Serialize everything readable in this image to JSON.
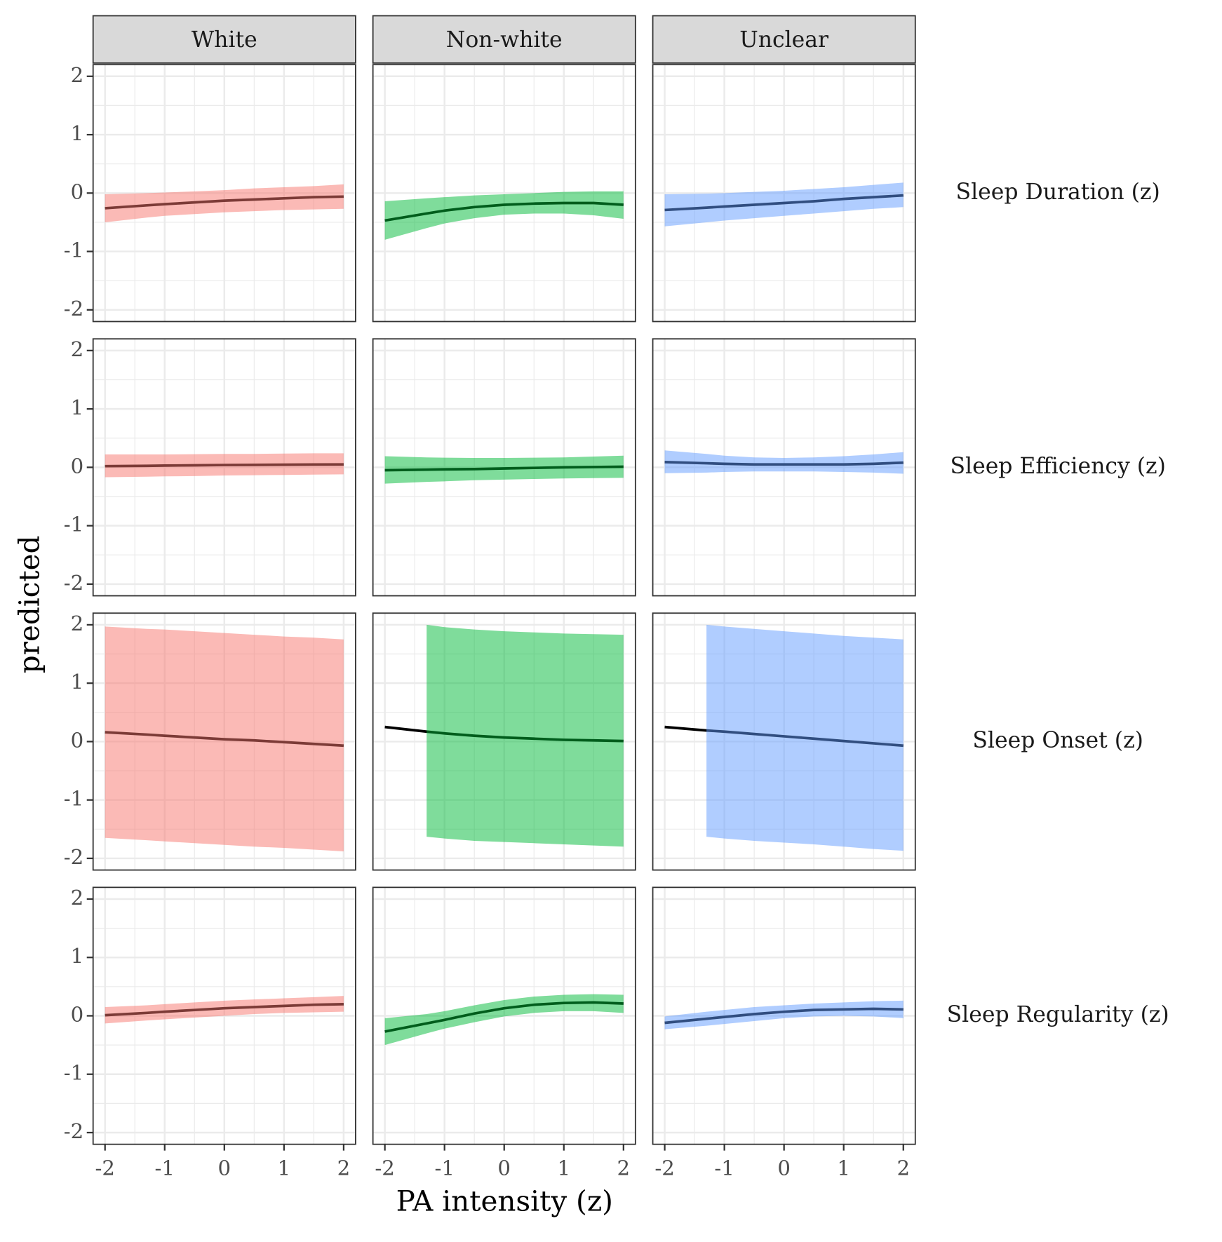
{
  "chart_data": {
    "type": "line",
    "x_label": "PA intensity (z)",
    "y_label": "predicted",
    "xlim": [
      -2.2,
      2.2
    ],
    "xticks": [
      -2,
      -1,
      0,
      1,
      2
    ],
    "ylim": [
      -2.2,
      2.2
    ],
    "yticks": [
      -2,
      -1,
      0,
      1,
      2
    ],
    "grid": true,
    "line_color": "#000000",
    "x": [
      -2,
      -1.3,
      -1,
      -0.5,
      0,
      0.5,
      1,
      1.5,
      2
    ],
    "columns": [
      {
        "name": "White",
        "color": "#f8766d"
      },
      {
        "name": "Non-white",
        "color": "#00ba38"
      },
      {
        "name": "Unclear",
        "color": "#619cff"
      }
    ],
    "rows": [
      "Sleep Duration (z)",
      "Sleep Efficiency (z)",
      "Sleep Onset (z)",
      "Sleep Regularity (z)"
    ],
    "panels": [
      [
        {
          "line": [
            -0.26,
            -0.21,
            -0.19,
            -0.16,
            -0.13,
            -0.11,
            -0.09,
            -0.07,
            -0.06
          ],
          "lower": [
            -0.5,
            -0.42,
            -0.39,
            -0.36,
            -0.33,
            -0.31,
            -0.29,
            -0.28,
            -0.27
          ],
          "upper": [
            -0.02,
            0.0,
            0.01,
            0.03,
            0.05,
            0.08,
            0.1,
            0.12,
            0.15
          ]
        },
        {
          "line": [
            -0.47,
            -0.35,
            -0.3,
            -0.24,
            -0.2,
            -0.18,
            -0.17,
            -0.17,
            -0.2
          ],
          "lower": [
            -0.8,
            -0.6,
            -0.52,
            -0.43,
            -0.37,
            -0.35,
            -0.35,
            -0.38,
            -0.44
          ],
          "upper": [
            -0.14,
            -0.09,
            -0.07,
            -0.04,
            -0.02,
            0.0,
            0.02,
            0.03,
            0.03
          ]
        },
        {
          "line": [
            -0.29,
            -0.25,
            -0.23,
            -0.2,
            -0.17,
            -0.14,
            -0.1,
            -0.07,
            -0.04
          ],
          "lower": [
            -0.57,
            -0.5,
            -0.47,
            -0.43,
            -0.39,
            -0.35,
            -0.31,
            -0.27,
            -0.24
          ],
          "upper": [
            -0.02,
            -0.01,
            0.0,
            0.02,
            0.04,
            0.07,
            0.1,
            0.14,
            0.18
          ]
        }
      ],
      [
        {
          "line": [
            0.02,
            0.025,
            0.03,
            0.035,
            0.04,
            0.042,
            0.045,
            0.048,
            0.05
          ],
          "lower": [
            -0.17,
            -0.16,
            -0.155,
            -0.15,
            -0.14,
            -0.135,
            -0.13,
            -0.125,
            -0.12
          ],
          "upper": [
            0.22,
            0.22,
            0.22,
            0.225,
            0.23,
            0.23,
            0.235,
            0.24,
            0.24
          ]
        },
        {
          "line": [
            -0.05,
            -0.04,
            -0.035,
            -0.03,
            -0.02,
            -0.01,
            0.0,
            0.005,
            0.01
          ],
          "lower": [
            -0.28,
            -0.25,
            -0.24,
            -0.22,
            -0.21,
            -0.2,
            -0.19,
            -0.185,
            -0.18
          ],
          "upper": [
            0.19,
            0.17,
            0.165,
            0.16,
            0.16,
            0.165,
            0.17,
            0.185,
            0.2
          ]
        },
        {
          "line": [
            0.09,
            0.07,
            0.06,
            0.05,
            0.05,
            0.05,
            0.05,
            0.06,
            0.08
          ],
          "lower": [
            -0.1,
            -0.09,
            -0.08,
            -0.07,
            -0.07,
            -0.07,
            -0.08,
            -0.09,
            -0.11
          ],
          "upper": [
            0.29,
            0.23,
            0.2,
            0.17,
            0.16,
            0.17,
            0.19,
            0.22,
            0.26
          ]
        }
      ],
      [
        {
          "line": [
            0.16,
            0.12,
            0.1,
            0.07,
            0.04,
            0.02,
            -0.01,
            -0.04,
            -0.07
          ],
          "lower": [
            -1.65,
            -1.69,
            -1.71,
            -1.74,
            -1.77,
            -1.8,
            -1.82,
            -1.85,
            -1.88
          ],
          "upper": [
            1.97,
            1.93,
            1.92,
            1.89,
            1.86,
            1.83,
            1.8,
            1.78,
            1.75
          ]
        },
        {
          "line": [
            0.25,
            0.17,
            0.14,
            0.1,
            0.07,
            0.05,
            0.03,
            0.02,
            0.01
          ],
          "lower": [
            null,
            -1.63,
            -1.66,
            -1.7,
            -1.72,
            -1.74,
            -1.76,
            -1.78,
            -1.8
          ],
          "upper": [
            null,
            2.0,
            1.96,
            1.92,
            1.89,
            1.87,
            1.85,
            1.84,
            1.83
          ]
        },
        {
          "line": [
            0.25,
            0.19,
            0.17,
            0.13,
            0.09,
            0.05,
            0.01,
            -0.03,
            -0.07
          ],
          "lower": [
            null,
            -1.63,
            -1.66,
            -1.7,
            -1.73,
            -1.76,
            -1.8,
            -1.84,
            -1.87
          ],
          "upper": [
            null,
            2.0,
            1.97,
            1.93,
            1.89,
            1.85,
            1.81,
            1.78,
            1.75
          ]
        }
      ],
      [
        {
          "line": [
            0.01,
            0.05,
            0.07,
            0.1,
            0.13,
            0.15,
            0.17,
            0.19,
            0.2
          ],
          "lower": [
            -0.13,
            -0.08,
            -0.06,
            -0.03,
            0.0,
            0.03,
            0.05,
            0.06,
            0.07
          ],
          "upper": [
            0.15,
            0.18,
            0.2,
            0.23,
            0.26,
            0.28,
            0.3,
            0.32,
            0.34
          ]
        },
        {
          "line": [
            -0.27,
            -0.13,
            -0.07,
            0.04,
            0.13,
            0.19,
            0.22,
            0.23,
            0.21
          ],
          "lower": [
            -0.5,
            -0.3,
            -0.22,
            -0.11,
            -0.01,
            0.05,
            0.08,
            0.08,
            0.05
          ],
          "upper": [
            -0.04,
            0.03,
            0.08,
            0.18,
            0.27,
            0.33,
            0.36,
            0.37,
            0.36
          ]
        },
        {
          "line": [
            -0.12,
            -0.05,
            -0.02,
            0.03,
            0.07,
            0.1,
            0.11,
            0.12,
            0.11
          ],
          "lower": [
            -0.23,
            -0.17,
            -0.14,
            -0.09,
            -0.04,
            -0.01,
            0.0,
            -0.01,
            -0.04
          ],
          "upper": [
            -0.01,
            0.07,
            0.1,
            0.15,
            0.18,
            0.21,
            0.23,
            0.25,
            0.26
          ]
        }
      ]
    ]
  }
}
